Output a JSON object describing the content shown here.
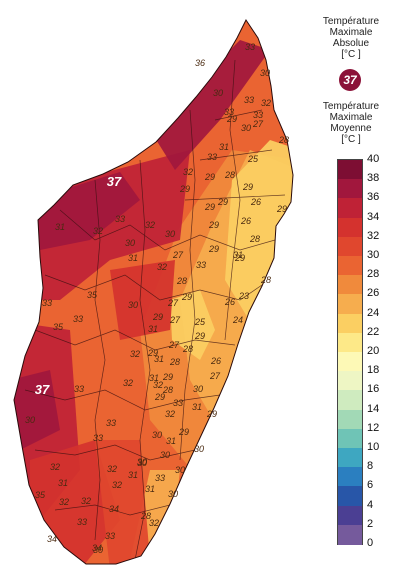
{
  "legend": {
    "abs_title": [
      "Température",
      "Maximale",
      "Absolue",
      "[°C ]"
    ],
    "abs_value": "37",
    "abs_color": "#8b1238",
    "mean_title": [
      "Température",
      "Maximale",
      "Moyenne",
      "[°C ]"
    ],
    "scale_ticks": [
      "40",
      "38",
      "36",
      "34",
      "32",
      "30",
      "28",
      "26",
      "24",
      "22",
      "20",
      "18",
      "16",
      "14",
      "12",
      "10",
      "8",
      "6",
      "4",
      "2",
      "0"
    ],
    "scale_colors": [
      "#7d0e33",
      "#a1173d",
      "#bf2236",
      "#d4322e",
      "#e0472e",
      "#ea6432",
      "#f08a3c",
      "#f6ad4e",
      "#fbcf62",
      "#fde988",
      "#fdf9b6",
      "#eef6c4",
      "#cfebbf",
      "#a2d9b6",
      "#6fc4b6",
      "#3ea7c1",
      "#2b7fc0",
      "#2856a8",
      "#4b3f93",
      "#755a9c",
      "#2b2f7a"
    ]
  },
  "map": {
    "abs_markers": [
      "37",
      "37"
    ],
    "region_labels": [
      "36",
      "33",
      "30",
      "30",
      "33",
      "32",
      "33",
      "33",
      "29",
      "27",
      "30",
      "28",
      "31",
      "33",
      "32",
      "28",
      "29",
      "29",
      "29",
      "29",
      "25",
      "26",
      "29",
      "33",
      "32",
      "30",
      "30",
      "29",
      "26",
      "29",
      "28",
      "29",
      "31",
      "32",
      "31",
      "27",
      "33",
      "28",
      "29",
      "31",
      "29",
      "33",
      "28",
      "24",
      "35",
      "32",
      "27",
      "30",
      "33",
      "26",
      "29",
      "35",
      "31",
      "27",
      "29",
      "27",
      "29",
      "23",
      "31",
      "32",
      "29",
      "25",
      "28",
      "26",
      "33",
      "31",
      "28",
      "32",
      "29",
      "32",
      "30",
      "28",
      "33",
      "32",
      "27",
      "31",
      "29",
      "30",
      "30",
      "33",
      "31",
      "29",
      "33",
      "30",
      "30",
      "31",
      "32",
      "32",
      "30",
      "30",
      "33",
      "30",
      "31",
      "33",
      "33",
      "28",
      "32",
      "30",
      "31",
      "34",
      "32",
      "30",
      "32",
      "34",
      "35",
      "32",
      "34"
    ]
  }
}
